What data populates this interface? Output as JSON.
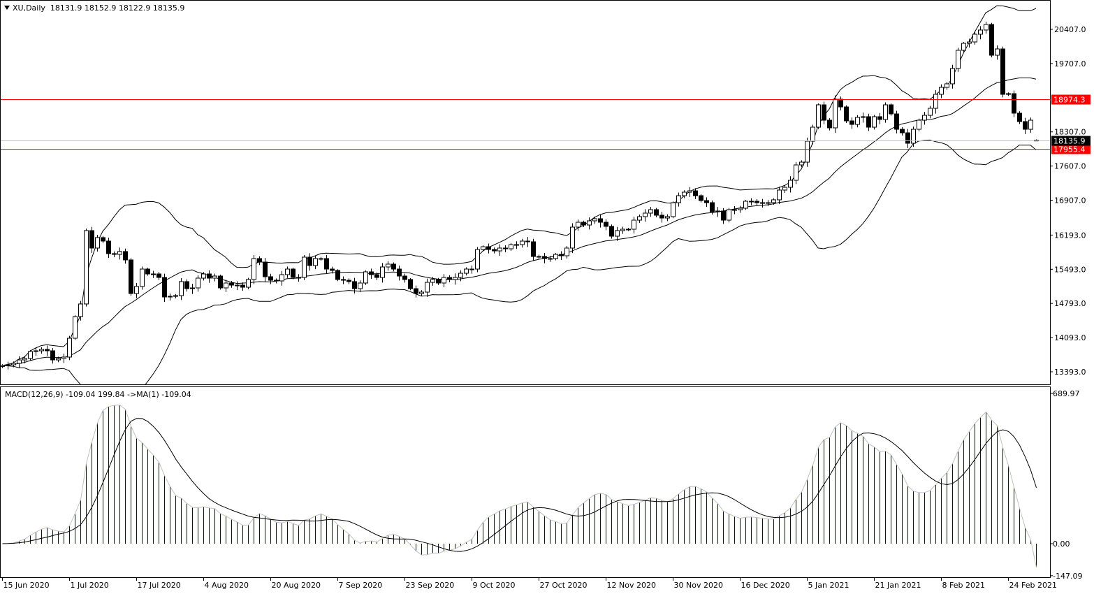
{
  "header": {
    "symbol": "XU,Daily",
    "ohlc": "18131.9 18152.9 18122.9 18135.9"
  },
  "macd_header": {
    "label": "MACD(12,26,9) -109.04 199.84  ->MA(1) -109.04"
  },
  "colors": {
    "level_line": "#ff0000",
    "current_price_label_bg": "#000000",
    "current_price_line": "#c0c0c0",
    "histogram": "#000080",
    "histogram_outline": "#c0c0c0",
    "signal_line": "#000000",
    "candle_up": "#ffffff",
    "candle_down": "#000000"
  },
  "chart_data": [
    {
      "type": "candlestick",
      "title": "XU,Daily",
      "price_axis_ticks": [
        "20407.0",
        "19707.0",
        "18307.0",
        "17607.0",
        "16907.0",
        "16193.0",
        "15493.0",
        "14793.0",
        "14093.0",
        "13393.0"
      ],
      "price_axis_values": [
        20407,
        19707,
        18307,
        17607,
        16907,
        16193,
        15493,
        14793,
        14093,
        13393
      ],
      "ylim": [
        13393,
        20407
      ],
      "x_tick_labels": [
        "15 Jun 2020",
        "1 Jul 2020",
        "17 Jul 2020",
        "4 Aug 2020",
        "20 Aug 2020",
        "7 Sep 2020",
        "23 Sep 2020",
        "9 Oct 2020",
        "27 Oct 2020",
        "12 Nov 2020",
        "30 Nov 2020",
        "16 Dec 2020",
        "5 Jan 2021",
        "21 Jan 2021",
        "8 Feb 2021",
        "24 Feb 2021"
      ],
      "last_bar": {
        "open": 18131.9,
        "high": 18152.9,
        "low": 18122.9,
        "close": 18135.9
      },
      "current_price_label": "18135.9",
      "current_price": 18135.9,
      "levels": [
        {
          "value": 18974.3,
          "label": "18974.3"
        },
        {
          "value": 17955.4,
          "label": "17955.4"
        }
      ],
      "indicators": [
        "Bollinger Bands (20,2)"
      ],
      "closes": [
        13522,
        13536,
        13565,
        13636,
        13665,
        13808,
        13823,
        13851,
        13823,
        13636,
        13665,
        13694,
        14080,
        14524,
        14782,
        16285,
        15927,
        16142,
        16070,
        15813,
        15798,
        15856,
        15684,
        14996,
        15140,
        15497,
        15397,
        15397,
        15325,
        14925,
        14939,
        14953,
        15240,
        15096,
        15111,
        15311,
        15397,
        15311,
        15354,
        15111,
        15211,
        15168,
        15168,
        15125,
        15283,
        15712,
        15640,
        15340,
        15268,
        15254,
        15383,
        15497,
        15325,
        15325,
        15741,
        15569,
        15712,
        15712,
        15497,
        15469,
        15283,
        15268,
        15240,
        15096,
        15211,
        15440,
        15383,
        15325,
        15540,
        15598,
        15497,
        15354,
        15283,
        15096,
        14996,
        15025,
        15225,
        15283,
        15211,
        15325,
        15283,
        15325,
        15411,
        15497,
        15497,
        15898,
        15955,
        15898,
        15869,
        15927,
        15912,
        15998,
        15998,
        16070,
        16056,
        15755,
        15755,
        15712,
        15712,
        15798,
        15769,
        15927,
        16356,
        16456,
        16399,
        16485,
        16528,
        16456,
        16371,
        16170,
        16285,
        16313,
        16313,
        16499,
        16571,
        16643,
        16714,
        16600,
        16542,
        16571,
        16857,
        17000,
        17072,
        17100,
        17000,
        16900,
        16857,
        16671,
        16686,
        16499,
        16714,
        16714,
        16743,
        16886,
        16886,
        16857,
        16857,
        16857,
        16915,
        17115,
        17172,
        17315,
        17630,
        17687,
        18117,
        18403,
        18861,
        18546,
        18389,
        18976,
        18818,
        18532,
        18460,
        18604,
        18618,
        18403,
        18618,
        18561,
        18861,
        18675,
        18360,
        18288,
        18074,
        18360,
        18546,
        18646,
        18790,
        19076,
        19219,
        19291,
        19605,
        19978,
        20121,
        20149,
        20307,
        20393,
        20507,
        19877,
        20006,
        19076,
        19090,
        18690,
        18518,
        18360,
        18546,
        18136
      ]
    },
    {
      "type": "bar",
      "title": "MACD(12,26,9)",
      "macd": -109.04,
      "signal": 199.84,
      "axis_ticks": [
        "689.97",
        "0.00",
        "-147.09"
      ],
      "axis_values": [
        689.97,
        0,
        -147.09
      ],
      "ylim": [
        -147.09,
        689.97
      ]
    }
  ]
}
